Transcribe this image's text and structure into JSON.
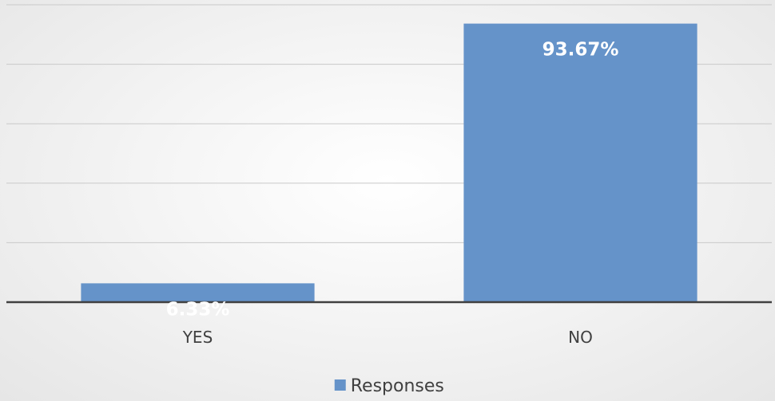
{
  "chart_data": {
    "type": "bar",
    "categories": [
      "YES",
      "NO"
    ],
    "series": [
      {
        "name": "Responses",
        "values": [
          6.33,
          93.67
        ],
        "color": "#6593c9"
      }
    ],
    "data_labels": [
      "6.33%",
      "93.67%"
    ],
    "title": "",
    "xlabel": "",
    "ylabel": "",
    "ylim": [
      0,
      100
    ],
    "grid": true,
    "legend": "bottom-center",
    "colors": {
      "bar": "#6593c9",
      "grid": "#c9c9c9",
      "axis": "#404040",
      "text": "#404040"
    }
  }
}
